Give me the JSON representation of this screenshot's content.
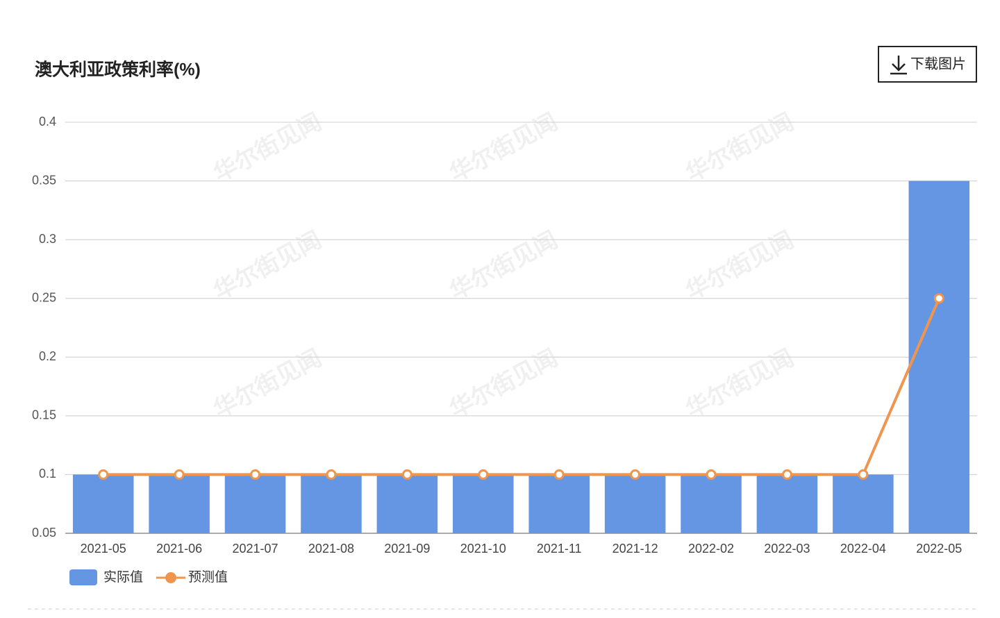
{
  "chart_data": {
    "type": "bar-line",
    "title": "澳大利亚政策利率(%)",
    "button": "下载图片",
    "watermark": "华尔街见闻",
    "categories": [
      "2021-05",
      "2021-06",
      "2021-07",
      "2021-08",
      "2021-09",
      "2021-10",
      "2021-11",
      "2021-12",
      "2022-02",
      "2022-03",
      "2022-04",
      "2022-05"
    ],
    "series": [
      {
        "name": "实际值",
        "type": "bar",
        "color": "#6596e3",
        "values": [
          0.1,
          0.1,
          0.1,
          0.1,
          0.1,
          0.1,
          0.1,
          0.1,
          0.1,
          0.1,
          0.1,
          0.35
        ]
      },
      {
        "name": "预测值",
        "type": "line",
        "color": "#f0954e",
        "values": [
          0.1,
          0.1,
          0.1,
          0.1,
          0.1,
          0.1,
          0.1,
          0.1,
          0.1,
          0.1,
          0.1,
          0.25
        ]
      }
    ],
    "ylim": [
      0.05,
      0.4
    ],
    "yticks": [
      0.05,
      0.1,
      0.15,
      0.2,
      0.25,
      0.3,
      0.35,
      0.4
    ],
    "grid": true
  }
}
